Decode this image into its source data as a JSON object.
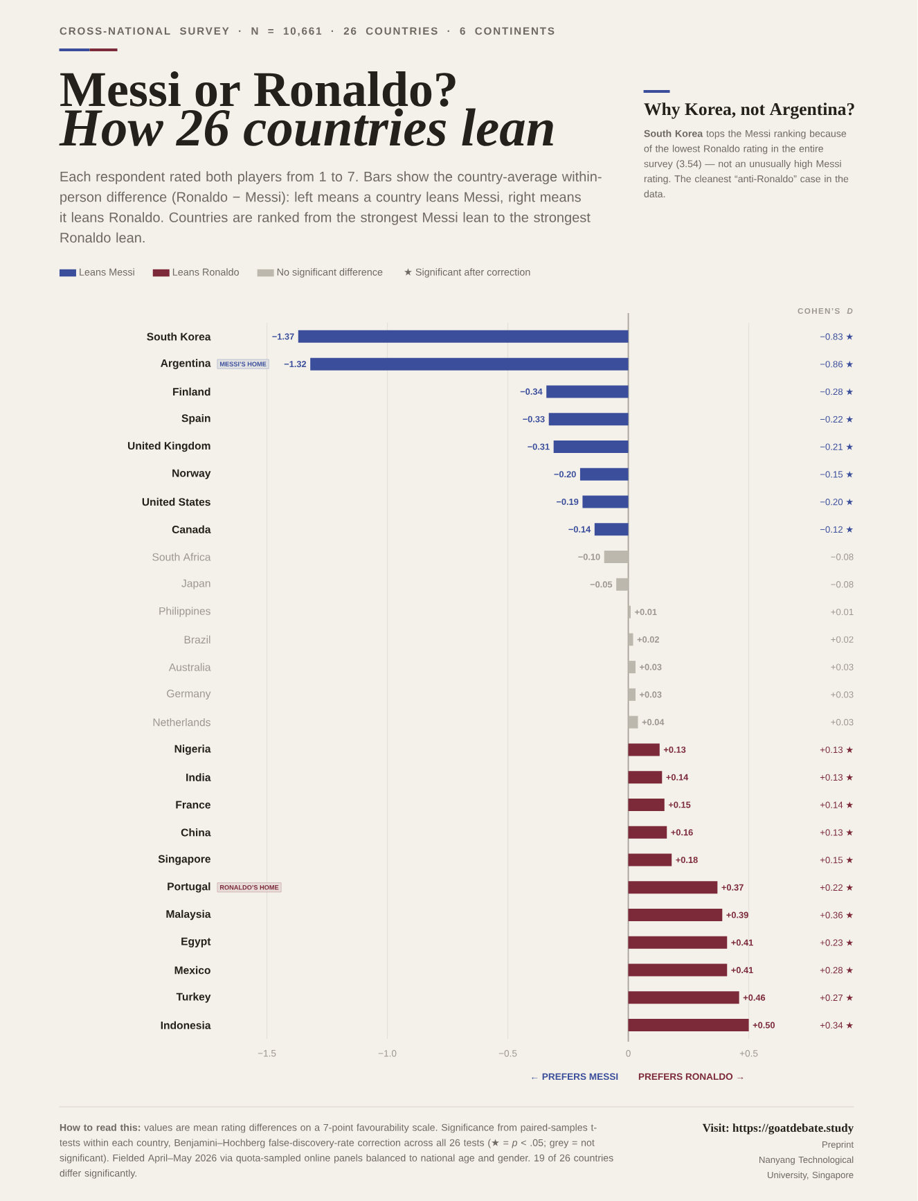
{
  "chart_data": {
    "type": "bar",
    "orientation": "horizontal",
    "title": "Messi or Ronaldo?",
    "subtitle": "How 26 countries lean",
    "categories": [
      "South Korea",
      "Argentina",
      "Finland",
      "Spain",
      "United Kingdom",
      "Norway",
      "United States",
      "Canada",
      "South Africa",
      "Japan",
      "Philippines",
      "Brazil",
      "Australia",
      "Germany",
      "Netherlands",
      "Nigeria",
      "India",
      "France",
      "China",
      "Singapore",
      "Portugal",
      "Malaysia",
      "Egypt",
      "Mexico",
      "Turkey",
      "Indonesia"
    ],
    "series": [
      {
        "name": "Leans Messi",
        "color": "#3B4E9C",
        "values": [
          -1.37,
          -1.32,
          -0.34,
          -0.33,
          -0.31,
          -0.2,
          -0.19,
          -0.14,
          null,
          null,
          null,
          null,
          null,
          null,
          null,
          null,
          null,
          null,
          null,
          null,
          null,
          null,
          null,
          null,
          null,
          null
        ],
        "value_labels": [
          "−1.37",
          "−1.32",
          "−0.34",
          "−0.33",
          "−0.31",
          "−0.20",
          "−0.19",
          "−0.14",
          null,
          null,
          null,
          null,
          null,
          null,
          null,
          null,
          null,
          null,
          null,
          null,
          null,
          null,
          null,
          null,
          null,
          null
        ]
      },
      {
        "name": "Leans Ronaldo",
        "color": "#7C2A3A",
        "values": [
          null,
          null,
          null,
          null,
          null,
          null,
          null,
          null,
          null,
          null,
          null,
          null,
          null,
          null,
          null,
          0.13,
          0.14,
          0.15,
          0.16,
          0.18,
          0.37,
          0.39,
          0.41,
          0.41,
          0.46,
          0.5
        ],
        "value_labels": [
          null,
          null,
          null,
          null,
          null,
          null,
          null,
          null,
          null,
          null,
          null,
          null,
          null,
          null,
          null,
          "+0.13",
          "+0.14",
          "+0.15",
          "+0.16",
          "+0.18",
          "+0.37",
          "+0.39",
          "+0.41",
          "+0.41",
          "+0.46",
          "+0.50"
        ]
      },
      {
        "name": "No significant difference",
        "color": "#BCB8AE",
        "values": [
          null,
          null,
          null,
          null,
          null,
          null,
          null,
          null,
          -0.1,
          -0.05,
          0.01,
          0.02,
          0.03,
          0.03,
          0.04,
          null,
          null,
          null,
          null,
          null,
          null,
          null,
          null,
          null,
          null,
          null
        ],
        "value_labels": [
          null,
          null,
          null,
          null,
          null,
          null,
          null,
          null,
          "−0.10",
          "−0.05",
          "+0.01",
          "+0.02",
          "+0.03",
          "+0.03",
          "+0.04",
          null,
          null,
          null,
          null,
          null,
          null,
          null,
          null,
          null,
          null,
          null
        ]
      }
    ],
    "xlim": [
      -1.5,
      0.5
    ],
    "xticks": [
      {
        "value": -1.5,
        "label": "−1.5"
      },
      {
        "value": -1.0,
        "label": "−1.0"
      },
      {
        "value": -0.5,
        "label": "−0.5"
      },
      0,
      {
        "value": 0.5,
        "label": "+0.5"
      }
    ],
    "grid": "x",
    "legend": "top left",
    "ref_lines": [
      {
        "axis": "x",
        "value": 0,
        "color": "#A8A49B"
      }
    ],
    "annotations": [
      "CROSS-NATIONAL SURVEY · N = 10,661 · 26 COUNTRIES · 6 CONTINENTS",
      "Each respondent rated both players from 1 to 7. Bars show the country-average within-person difference (Ronaldo − Messi): left means a country leans Messi, right means it leans Ronaldo. Countries are ranked from the strongest Messi lean to the strongest Ronaldo lean.",
      "Why Korea, not Argentina?",
      "**South Korea** tops the Messi ranking because of the lowest Ronaldo rating in the entire survey (3.54) — not an unusually high Messi rating. The cleanest “anti-Ronaldo” case in the data.",
      "★ Significant after correction",
      "COHEN’S *D*",
      "← PREFERS MESSI",
      "PREFERS RONALDO →",
      "**How to read this:** values are mean rating differences on a 7-point favourability scale. Significance from paired-samples t-tests within each country, Benjamini–Hochberg false-discovery-rate correction across all 26 tests (★ = *p* < .05; grey = not significant). Fielded April–May 2026 via quota-sampled online panels balanced to national age and gender. 19 of 26 countries differ significantly.",
      "Visit: https://goatdebate.study",
      "Preprint",
      "Nanyang Technological University, Singapore",
      "MESSI’S HOME",
      "RONALDO’S HOME",
      "−0.83 ★",
      "−0.86 ★",
      "−0.28 ★",
      "−0.22 ★",
      "−0.21 ★",
      "−0.15 ★",
      "−0.20 ★",
      "−0.12 ★",
      "−0.08",
      "−0.08",
      "+0.01",
      "+0.02",
      "+0.03",
      "+0.03",
      "+0.03",
      "+0.13 ★",
      "+0.13 ★",
      "+0.14 ★",
      "+0.13 ★",
      "+0.15 ★",
      "+0.22 ★",
      "+0.36 ★",
      "+0.23 ★",
      "+0.28 ★",
      "+0.27 ★",
      "+0.34 ★"
    ]
  }
}
